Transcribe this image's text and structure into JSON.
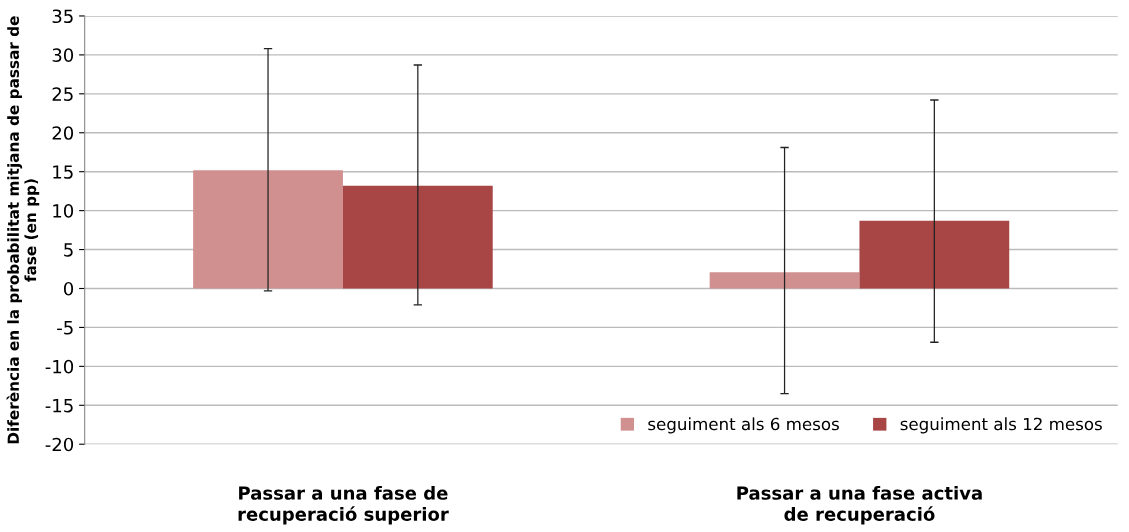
{
  "chart_data": {
    "type": "bar",
    "ylabel": "Diferència en la probabilitat mitjana de passar de fase (en pp)",
    "categories": [
      "Passar a una fase de\nrecuperació superior",
      "Passar a una fase activa\nde recuperació"
    ],
    "series": [
      {
        "name": "seguiment als 6 mesos",
        "color": "#d19090",
        "values": [
          15.2,
          2.1
        ],
        "errors": [
          [
            -0.3,
            30.8
          ],
          [
            -13.5,
            18.1
          ]
        ]
      },
      {
        "name": "seguiment als 12 mesos",
        "color": "#a84545",
        "values": [
          13.2,
          8.7
        ],
        "errors": [
          [
            -2.1,
            28.7
          ],
          [
            -6.9,
            24.2
          ]
        ]
      }
    ],
    "ylim": [
      -20,
      35
    ],
    "yticks": [
      -20,
      -15,
      -10,
      -5,
      0,
      5,
      10,
      15,
      20,
      25,
      30,
      35
    ],
    "grid": "y",
    "legend": "bottom right"
  }
}
